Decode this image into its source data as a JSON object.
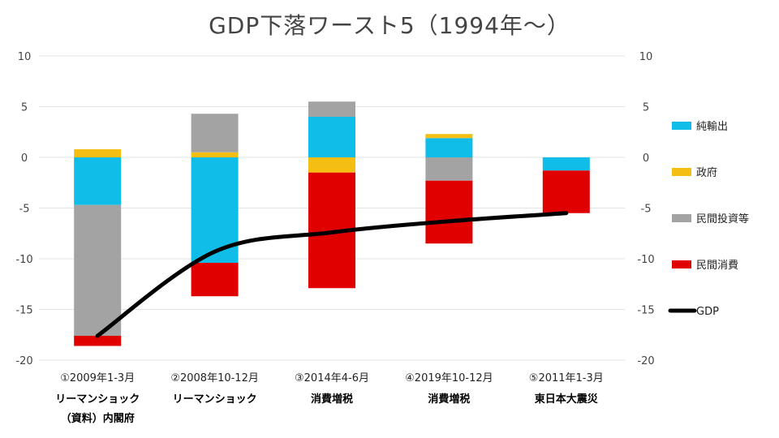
{
  "chart_data": {
    "type": "bar",
    "stacked": true,
    "title": "GDP下落ワースト5（1994年～）",
    "categories": [
      "①2009年1-3月",
      "②2008年10-12月",
      "③2014年4-6月",
      "④2019年10-12月",
      "⑤2011年1-3月"
    ],
    "category_sublabels": [
      [
        "リーマンショック",
        "（資料）内閣府"
      ],
      [
        "リーマンショック"
      ],
      [
        "消費増税"
      ],
      [
        "消費増税"
      ],
      [
        "東日本大震災"
      ]
    ],
    "series": [
      {
        "name": "純輸出",
        "kind": "bar",
        "color": "#10BDE8",
        "values": [
          -4.7,
          -10.4,
          4.0,
          1.9,
          -1.3
        ]
      },
      {
        "name": "政府",
        "kind": "bar",
        "color": "#F4BE12",
        "values": [
          0.8,
          0.5,
          -1.5,
          0.4,
          0
        ]
      },
      {
        "name": "民間投資等",
        "kind": "bar",
        "color": "#A3A3A3",
        "values": [
          -12.9,
          3.8,
          1.5,
          -2.3,
          0
        ]
      },
      {
        "name": "民間消費",
        "kind": "bar",
        "color": "#E00000",
        "values": [
          -1.0,
          -3.3,
          -11.4,
          -6.2,
          -4.2
        ]
      },
      {
        "name": "GDP",
        "kind": "line",
        "color": "#000000",
        "values": [
          -17.6,
          -9.3,
          -7.4,
          -6.3,
          -5.5
        ]
      }
    ],
    "ylim": [
      -20,
      10
    ],
    "yticks": [
      10,
      5,
      0,
      -5,
      -10,
      -15,
      -20
    ],
    "secondary_y": true,
    "grid": true,
    "legend": "right"
  }
}
